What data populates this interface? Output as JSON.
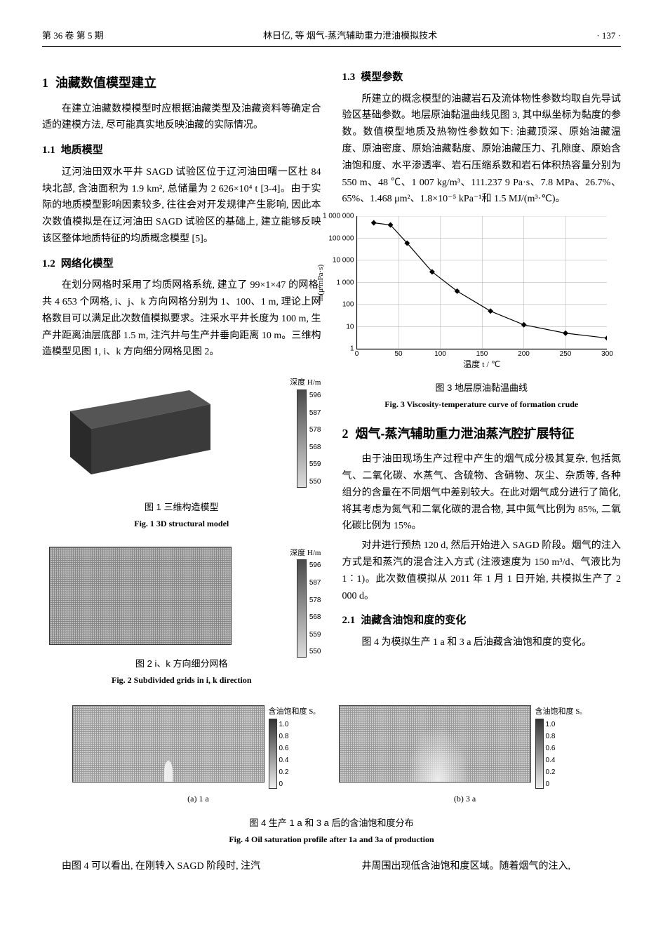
{
  "header": {
    "left": "第 36 卷  第 5 期",
    "center": "林日亿, 等  烟气-蒸汽辅助重力泄油模拟技术",
    "right": "· 137 ·"
  },
  "s1": {
    "num": "1",
    "title": "油藏数值模型建立",
    "intro": "在建立油藏数模模型时应根据油藏类型及油藏资料等确定合适的建模方法, 尽可能真实地反映油藏的实际情况。",
    "s11_num": "1.1",
    "s11_title": "地质模型",
    "s11_body": "辽河油田双水平井 SAGD 试验区位于辽河油田曙一区杜 84 块北部, 含油面积为 1.9 km², 总储量为 2 626×10⁴ t [3-4]。由于实际的地质模型影响因素较多, 往往会对开发规律产生影响, 因此本次数值模拟是在辽河油田 SAGD 试验区的基础上, 建立能够反映该区整体地质特征的均质概念模型 [5]。",
    "s12_num": "1.2",
    "s12_title": "网络化模型",
    "s12_body": "在划分网格时采用了均质网格系统, 建立了 99×1×47 的网格, 共 4 653 个网格, i、j、k 方向网格分别为 1、100、1 m, 理论上网格数目可以满足此次数值模拟要求。注采水平井长度为 100 m, 生产井距离油层底部 1.5 m, 注汽井与生产井垂向距离 10 m。三维构造模型见图 1, i、k 方向细分网格见图 2。",
    "s13_num": "1.3",
    "s13_title": "模型参数",
    "s13_body": "所建立的概念模型的油藏岩石及流体物性参数均取自先导试验区基础参数。地层原油黏温曲线见图 3, 其中纵坐标为黏度的参数。数值模型地质及热物性参数如下: 油藏顶深、原始油藏温度、原油密度、原始油藏黏度、原始油藏压力、孔隙度、原始含油饱和度、水平渗透率、岩石压缩系数和岩石体积热容量分别为 550 m、48 ℃、1 007 kg/m³、111.237 9 Pa·s、7.8 MPa、26.7%、65%、1.468 μm²、1.8×10⁻⁵ kPa⁻¹和 1.5 MJ/(m³·℃)。"
  },
  "fig1": {
    "caption_cn": "图 1  三维构造模型",
    "caption_en": "Fig. 1  3D structural model",
    "depth_label": "深度 H/m",
    "ticks": [
      "596",
      "587",
      "578",
      "568",
      "559",
      "550"
    ],
    "grad_top": "#4a4a4a",
    "grad_bottom": "#dcdcdc",
    "model_top": "#555555",
    "model_front": "#3a3a3a",
    "model_side": "#2a2a2a"
  },
  "fig2": {
    "caption_cn": "图 2  i、k 方向细分网格",
    "caption_en": "Fig. 2  Subdivided grids in i, k direction",
    "depth_label": "深度 H/m",
    "ticks": [
      "596",
      "587",
      "578",
      "568",
      "559",
      "550"
    ]
  },
  "fig3": {
    "caption_cn": "图 3  地层原油黏温曲线",
    "caption_en": "Fig. 3  Viscosity-temperature curve of formation crude",
    "xlabel": "温度 t / ℃",
    "ylabel": "ln(μ/mPa·s)",
    "xlim": [
      0,
      300
    ],
    "xtick_step": 50,
    "xticks": [
      0,
      50,
      100,
      150,
      200,
      250,
      300
    ],
    "ylog": true,
    "yticks": [
      1,
      10,
      100,
      1000,
      10000,
      100000,
      1000000
    ],
    "ytick_labels": [
      "1",
      "10",
      "100",
      "1 000",
      "10 000",
      "100 000",
      "1 000 000"
    ],
    "line_color": "#000000",
    "marker": "diamond",
    "marker_color": "#000000",
    "marker_size": 4,
    "background_color": "#ffffff",
    "grid_color": "#aaaaaa",
    "points": [
      {
        "t": 20,
        "mu": 500000
      },
      {
        "t": 40,
        "mu": 400000
      },
      {
        "t": 60,
        "mu": 60000
      },
      {
        "t": 90,
        "mu": 3000
      },
      {
        "t": 120,
        "mu": 400
      },
      {
        "t": 160,
        "mu": 50
      },
      {
        "t": 200,
        "mu": 12
      },
      {
        "t": 250,
        "mu": 5
      },
      {
        "t": 300,
        "mu": 3
      }
    ]
  },
  "s2": {
    "num": "2",
    "title": "烟气-蒸汽辅助重力泄油蒸汽腔扩展特征",
    "p1": "由于油田现场生产过程中产生的烟气成分极其复杂, 包括氮气、二氧化碳、水蒸气、含硫物、含硝物、灰尘、杂质等, 各种组分的含量在不同烟气中差别较大。在此对烟气成分进行了简化, 将其考虑为氮气和二氧化碳的混合物, 其中氮气比例为 85%, 二氧化碳比例为 15%。",
    "p2": "对井进行预热 120 d, 然后开始进入 SAGD 阶段。烟气的注入方式是和蒸汽的混合注入方式 (注液速度为 150 m³/d、气液比为 1∶1)。此次数值模拟从 2011 年 1 月 1 日开始, 共模拟生产了 2 000 d。",
    "s21_num": "2.1",
    "s21_title": "油藏含油饱和度的变化",
    "s21_body": "图 4 为模拟生产 1 a 和 3 a 后油藏含油饱和度的变化。"
  },
  "fig4": {
    "caption_cn": "图 4  生产 1 a 和 3 a 后的含油饱和度分布",
    "caption_en": "Fig. 4  Oil saturation profile after 1a and 3a of production",
    "panel_a": "(a) 1 a",
    "panel_b": "(b) 3 a",
    "sat_label": "含油饱和度 Sₒ",
    "ticks": [
      "1.0",
      "0.8",
      "0.6",
      "0.4",
      "0.2",
      "0"
    ],
    "grad_top": "#333333",
    "grad_bottom": "#eeeeee"
  },
  "closing": {
    "left": "由图 4 可以看出, 在刚转入 SAGD 阶段时, 注汽",
    "right": "井周围出现低含油饱和度区域。随着烟气的注入,"
  }
}
